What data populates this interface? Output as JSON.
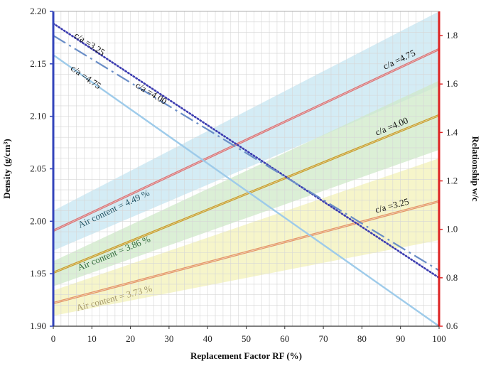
{
  "chart_data": {
    "type": "line",
    "xlabel": "Replacement Factor RF (%)",
    "ylabel_left": "Density (g/cm³)",
    "ylabel_right": "Relationship w/c",
    "x": [
      0,
      100
    ],
    "xlim": [
      0,
      100
    ],
    "xticks": [
      0,
      10,
      20,
      30,
      40,
      50,
      60,
      70,
      80,
      90,
      100
    ],
    "ylim_left": [
      1.9,
      2.2
    ],
    "yticks_left": [
      1.9,
      1.95,
      2.0,
      2.05,
      2.1,
      2.15,
      2.2
    ],
    "ylim_right": [
      0.6,
      1.9
    ],
    "yticks_right": [
      0.6,
      0.8,
      1.0,
      1.2,
      1.4,
      1.6,
      1.8
    ],
    "grid": true,
    "density_series": [
      {
        "label": "c/a =4.75",
        "axis": "left",
        "values": [
          1.991,
          2.164
        ],
        "band": [
          [
            1.972,
            2.01
          ],
          [
            2.129,
            2.2
          ]
        ],
        "color": "#d9787a",
        "band_color": "#c5e6f1"
      },
      {
        "label": "c/a =4.00",
        "axis": "left",
        "values": [
          1.951,
          2.101
        ],
        "band": [
          [
            1.938,
            1.962
          ],
          [
            2.068,
            2.134
          ]
        ],
        "color": "#c8a030",
        "band_color": "#cfe9c8"
      },
      {
        "label": "c/a =3.25",
        "axis": "left",
        "values": [
          1.922,
          2.019
        ],
        "band": [
          [
            1.91,
            1.934
          ],
          [
            1.982,
            2.06
          ]
        ],
        "color": "#e49a6a",
        "band_color": "#f3f1b8"
      }
    ],
    "wc_series": [
      {
        "label": "c/a =3.25",
        "axis": "right",
        "values": [
          1.85,
          0.8
        ],
        "color": "#3b3bb0",
        "style": "dotted"
      },
      {
        "label": "c/a =4.00",
        "axis": "right",
        "values": [
          1.8,
          0.83
        ],
        "color": "#6a8ec7",
        "style": "dashdot"
      },
      {
        "label": "c/a =4.75",
        "axis": "right",
        "values": [
          1.72,
          0.6
        ],
        "color": "#9ecbea",
        "style": "solid"
      }
    ],
    "band_labels": [
      {
        "text": "Air content = 4.49 %",
        "color": "#2a5a6a"
      },
      {
        "text": "Air content = 3.86 %",
        "color": "#2f6a3a"
      },
      {
        "text": "Air content = 3.73 %",
        "color": "#a89a6a"
      }
    ],
    "axis_colors": {
      "left": "#3344bb",
      "right": "#dd2222"
    }
  }
}
